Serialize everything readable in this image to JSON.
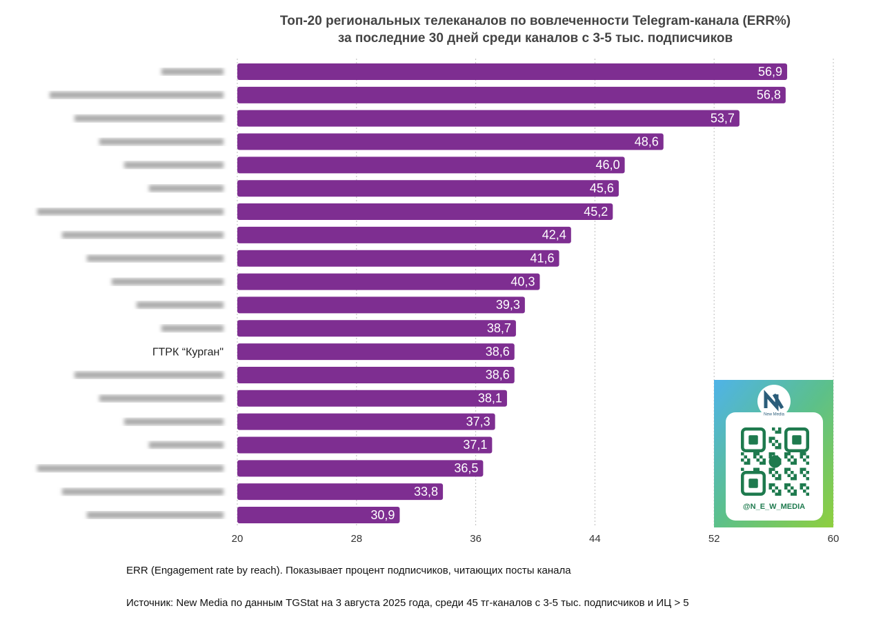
{
  "chart_data": {
    "type": "bar",
    "orientation": "horizontal",
    "title": [
      "Топ-20 региональных телеканалов по вовлеченности Telegram-канала (ERR%)",
      "за последние 30 дней среди каналов с 3-5 тыс. подписчиков"
    ],
    "categories": [
      null,
      null,
      null,
      null,
      null,
      null,
      null,
      null,
      null,
      null,
      null,
      null,
      "ГТРК “Курган\"",
      null,
      null,
      null,
      null,
      null,
      null,
      null
    ],
    "values": [
      56.9,
      56.8,
      53.7,
      48.6,
      46.0,
      45.6,
      45.2,
      42.4,
      41.6,
      40.3,
      39.3,
      38.7,
      38.6,
      38.6,
      38.1,
      37.3,
      37.1,
      36.5,
      33.8,
      30.9
    ],
    "value_labels": [
      "56,9",
      "56,8",
      "53,7",
      "48,6",
      "46,0",
      "45,6",
      "45,2",
      "42,4",
      "41,6",
      "40,3",
      "39,3",
      "38,7",
      "38,6",
      "38,6",
      "38,1",
      "37,3",
      "37,1",
      "36,5",
      "33,8",
      "30,9"
    ],
    "color": "#7e2e91",
    "xlim": [
      20,
      60
    ],
    "xticks": [
      20,
      28,
      36,
      44,
      52,
      60
    ],
    "grid": true,
    "footnotes": [
      "ERR (Engagement rate by reach). Показывает процент подписчиков, читающих посты канала",
      "Источник: New Media по данным TGStat на 3 августа 2025 года, среди 45 тг-каналов с 3-5 тыс. подписчиков и ИЦ > 5"
    ],
    "badge": {
      "logo_text": "New Media",
      "handle": "@N_E_W_MEDIA"
    }
  }
}
